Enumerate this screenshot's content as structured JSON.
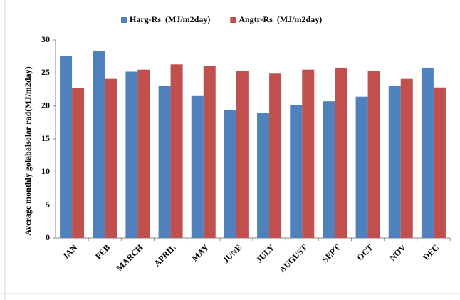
{
  "chart_data": {
    "type": "bar",
    "y_label": "Average monthly golabalsolar rad(MJ/m2day)",
    "categories": [
      "JAN",
      "FEB",
      "MARCH",
      "APRIL",
      "MAY",
      "JUNE",
      "JULY",
      "AUGUST",
      "SEPT",
      "OCT",
      "NOV",
      "DEC"
    ],
    "series": [
      {
        "name": "Harg-Rs  (MJ/m2day)",
        "color": "#4f81bd",
        "values": [
          27.6,
          28.3,
          25.2,
          23.0,
          21.5,
          19.4,
          18.9,
          20.1,
          20.7,
          21.4,
          23.1,
          25.8
        ]
      },
      {
        "name": "Angtr-Rs  (MJ/m2day)",
        "color": "#c0504d",
        "values": [
          22.7,
          24.1,
          25.5,
          26.3,
          26.1,
          25.3,
          24.9,
          25.5,
          25.8,
          25.3,
          24.1,
          22.8
        ]
      }
    ],
    "ylim": [
      0,
      30
    ],
    "yticks": [
      0,
      5,
      10,
      15,
      20,
      25,
      30
    ],
    "grid": false,
    "legend": "top"
  }
}
